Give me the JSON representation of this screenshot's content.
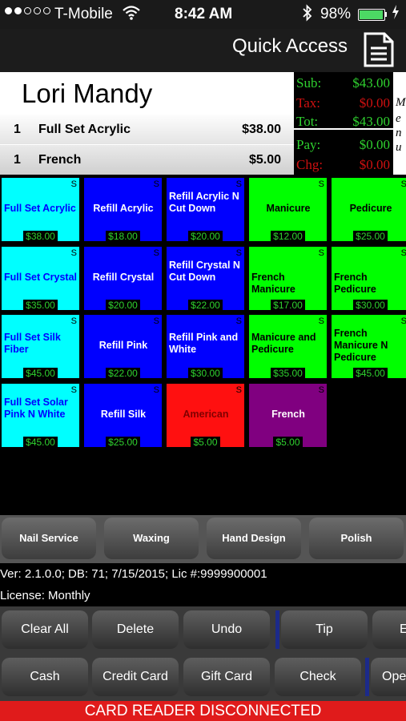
{
  "status_bar": {
    "signal_dots": [
      true,
      true,
      false,
      false,
      false
    ],
    "carrier": "T-Mobile",
    "time": "8:42 AM",
    "battery_percent": "98%",
    "battery_level": 0.98,
    "icons": [
      "wifi-icon",
      "bluetooth-icon",
      "battery-icon",
      "charging-bolt-icon"
    ]
  },
  "header": {
    "title": "Quick Access",
    "document_icon": "document-icon"
  },
  "ticket": {
    "customer_name": "Lori Mandy",
    "lines": [
      {
        "qty": "1",
        "name": "Full Set Acrylic",
        "price": "$38.00"
      },
      {
        "qty": "1",
        "name": "French",
        "price": "$5.00"
      }
    ]
  },
  "totals": {
    "sub_label": "Sub:",
    "sub_value": "$43.00",
    "tax_label": "Tax:",
    "tax_value": "$0.00",
    "tot_label": "Tot:",
    "tot_value": "$43.00",
    "pay_label": "Pay:",
    "pay_value": "$0.00",
    "chg_label": "Chg:",
    "chg_value": "$0.00"
  },
  "menu_tab": {
    "letters": [
      "M",
      "e",
      "n",
      "u"
    ]
  },
  "services": [
    {
      "name": "Full Set Acrylic",
      "price": "$38.00",
      "flag": "S",
      "color": "#00ffff",
      "text_color": "#0000ff"
    },
    {
      "name": "Refill Acrylic",
      "price": "$18.00",
      "flag": "S",
      "color": "#0000ff",
      "text_color": "#ffffff"
    },
    {
      "name": "Refill Acrylic N Cut Down",
      "price": "$20.00",
      "flag": "S",
      "color": "#0000ff",
      "text_color": "#ffffff"
    },
    {
      "name": "Manicure",
      "price": "$12.00",
      "flag": "S",
      "color": "#00ff00",
      "text_color": "#000000"
    },
    {
      "name": "Pedicure",
      "price": "$25.00",
      "flag": "S",
      "color": "#00ff00",
      "text_color": "#000000"
    },
    {
      "name": "Full Set Crystal",
      "price": "$35.00",
      "flag": "S",
      "color": "#00ffff",
      "text_color": "#0000ff"
    },
    {
      "name": "Refill Crystal",
      "price": "$20.00",
      "flag": "S",
      "color": "#0000ff",
      "text_color": "#ffffff"
    },
    {
      "name": "Refill Crystal N Cut Down",
      "price": "$22.00",
      "flag": "S",
      "color": "#0000ff",
      "text_color": "#ffffff"
    },
    {
      "name": "French Manicure",
      "price": "$17.00",
      "flag": "S",
      "color": "#00ff00",
      "text_color": "#000000"
    },
    {
      "name": "French Pedicure",
      "price": "$30.00",
      "flag": "S",
      "color": "#00ff00",
      "text_color": "#000000"
    },
    {
      "name": "Full Set Silk Fiber",
      "price": "$45.00",
      "flag": "S",
      "color": "#00ffff",
      "text_color": "#0000ff"
    },
    {
      "name": "Refill Pink",
      "price": "$22.00",
      "flag": "S",
      "color": "#0000ff",
      "text_color": "#ffffff"
    },
    {
      "name": "Refill Pink and White",
      "price": "$30.00",
      "flag": "S",
      "color": "#0000ff",
      "text_color": "#ffffff"
    },
    {
      "name": "Manicure and Pedicure",
      "price": "$35.00",
      "flag": "S",
      "color": "#00ff00",
      "text_color": "#000000"
    },
    {
      "name": "French Manicure N Pedicure",
      "price": "$45.00",
      "flag": "S",
      "color": "#00ff00",
      "text_color": "#000000"
    },
    {
      "name": "Full Set Solar Pink N White",
      "price": "$45.00",
      "flag": "S",
      "color": "#00ffff",
      "text_color": "#0000ff"
    },
    {
      "name": "Refill Silk",
      "price": "$25.00",
      "flag": "S",
      "color": "#0000ff",
      "text_color": "#ffffff"
    },
    {
      "name": "American",
      "price": "$5.00",
      "flag": "S",
      "color": "#ff1010",
      "text_color": "#800000"
    },
    {
      "name": "French",
      "price": "$5.00",
      "flag": "S",
      "color": "#800080",
      "text_color": "#ffffff"
    }
  ],
  "categories": [
    "Nail Service",
    "Waxing",
    "Hand Design",
    "Polish"
  ],
  "version_line": "Ver: 2.1.0.0; DB: 71; 7/15/2015; Lic #:9999900001",
  "license_line": "License: Monthly",
  "actions_row1": [
    "Clear All",
    "Delete",
    "Undo",
    "Tip",
    "E"
  ],
  "actions_row2": [
    "Cash",
    "Credit Card",
    "Gift Card",
    "Check",
    "Ope"
  ],
  "card_reader_status": "CARD READER DISCONNECTED",
  "colors": {
    "accent_green": "#2fd12f",
    "alert_red": "#e01b1b",
    "separator_blue": "#1c2a8a"
  }
}
